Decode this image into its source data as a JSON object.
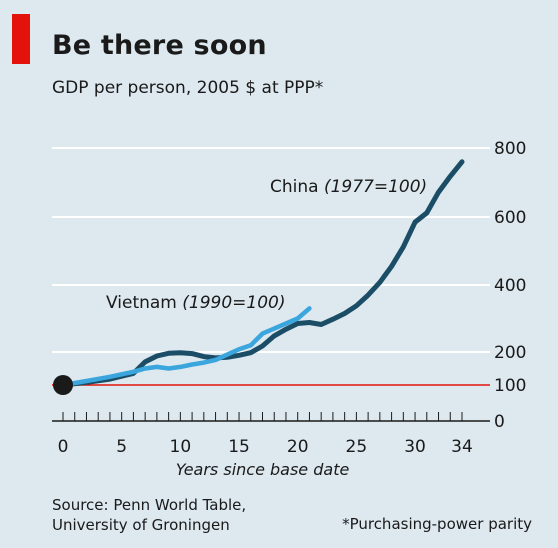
{
  "header": {
    "title": "Be there soon",
    "subtitle": "GDP per person, 2005 $ at PPP*"
  },
  "footer": {
    "source_line1": "Source: Penn World Table,",
    "source_line2": "University of Groningen",
    "footnote": "*Purchasing-power parity"
  },
  "colors": {
    "background": "#dde8ef",
    "accent_red": "#e3120b",
    "china": "#1b4e66",
    "vietnam": "#3aa6dd",
    "gridline": "#ffffff",
    "baseline": "#e3120b"
  },
  "chart_data": {
    "type": "line",
    "title": "Be there soon",
    "subtitle": "GDP per person, 2005 $ at PPP*",
    "xlabel": "Years since base date",
    "ylabel": "",
    "xlim": [
      0,
      34
    ],
    "ylim": [
      0,
      800
    ],
    "x_ticks": [
      0,
      5,
      10,
      15,
      20,
      25,
      30,
      34
    ],
    "y_ticks": [
      0,
      100,
      200,
      400,
      600,
      800
    ],
    "grid": true,
    "baseline": 100,
    "series": [
      {
        "name": "China",
        "label_note": "(1977=100)",
        "color": "#1b4e66",
        "x": [
          0,
          2,
          4,
          6,
          7,
          8,
          9,
          10,
          11,
          12,
          13,
          14,
          15,
          16,
          17,
          18,
          19,
          20,
          21,
          22,
          23,
          24,
          25,
          26,
          27,
          28,
          29,
          30,
          31,
          32,
          33,
          34
        ],
        "y": [
          100,
          108,
          118,
          135,
          170,
          188,
          196,
          198,
          195,
          186,
          182,
          184,
          190,
          198,
          218,
          248,
          268,
          285,
          288,
          282,
          298,
          315,
          338,
          370,
          408,
          455,
          512,
          585,
          612,
          672,
          718,
          760
        ]
      },
      {
        "name": "Vietnam",
        "label_note": "(1990=100)",
        "color": "#3aa6dd",
        "x": [
          0,
          2,
          4,
          6,
          7,
          8,
          9,
          10,
          11,
          12,
          13,
          14,
          15,
          16,
          17,
          18,
          19,
          20,
          21
        ],
        "y": [
          100,
          112,
          125,
          140,
          150,
          155,
          150,
          155,
          162,
          168,
          176,
          192,
          208,
          220,
          255,
          270,
          285,
          300,
          330
        ]
      }
    ],
    "annotations": [
      {
        "text": "China",
        "note": "(1977=100)",
        "series": "China"
      },
      {
        "text": "Vietnam",
        "note": "(1990=100)",
        "series": "Vietnam"
      }
    ]
  }
}
